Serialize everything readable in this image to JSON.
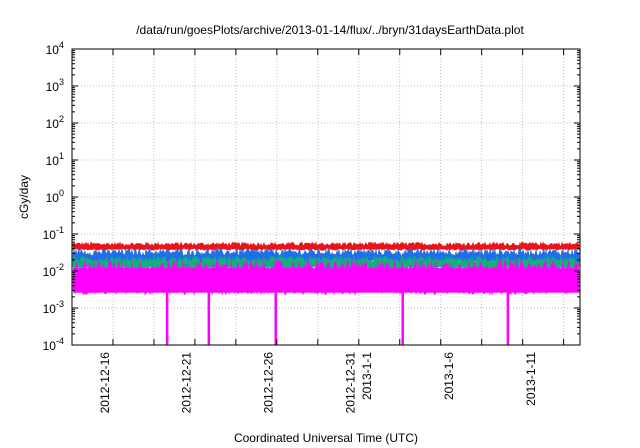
{
  "chart_data": {
    "type": "line",
    "title": "/data/run/goesPlots/archive/2013-01-14/flux/../bryn/31daysEarthData.plot",
    "xlabel": "Coordinated Universal Time (UTC)",
    "ylabel": "cGy/day",
    "yscale": "log",
    "ylim": [
      0.0001,
      10000
    ],
    "xlim": [
      "2012-12-14",
      "2013-01-14"
    ],
    "grid": true,
    "x_ticks": [
      {
        "date": "2012-12-16",
        "label": "2012-12-16"
      },
      {
        "date": "2012-12-21",
        "label": "2012-12-21"
      },
      {
        "date": "2012-12-26",
        "label": "2012-12-26"
      },
      {
        "date": "2012-12-31",
        "label": "2012-12-31"
      },
      {
        "date": "2013-01-01",
        "label": "2013-1-1"
      },
      {
        "date": "2013-01-06",
        "label": "2013-1-6"
      },
      {
        "date": "2013-01-11",
        "label": "2013-1-11"
      }
    ],
    "y_ticks": [
      {
        "value": 0.0001,
        "base": "10",
        "exp": "-4"
      },
      {
        "value": 0.001,
        "base": "10",
        "exp": "-3"
      },
      {
        "value": 0.01,
        "base": "10",
        "exp": "-2"
      },
      {
        "value": 0.1,
        "base": "10",
        "exp": "-1"
      },
      {
        "value": 1,
        "base": "10",
        "exp": "0"
      },
      {
        "value": 10,
        "base": "10",
        "exp": "1"
      },
      {
        "value": 100,
        "base": "10",
        "exp": "2"
      },
      {
        "value": 1000,
        "base": "10",
        "exp": "3"
      },
      {
        "value": 10000,
        "base": "10",
        "exp": "4"
      }
    ],
    "series": [
      {
        "color": "#e8141a",
        "typical_range": [
          0.035,
          0.06
        ]
      },
      {
        "color": "#1e6fe8",
        "typical_range": [
          0.015,
          0.04
        ]
      },
      {
        "color": "#12b07a",
        "typical_range": [
          0.01,
          0.025
        ]
      },
      {
        "color": "#ff00ff",
        "typical_range": [
          0.002,
          0.02
        ]
      }
    ],
    "dropouts": [
      {
        "series": 3,
        "date": "2012-12-19T19:00",
        "value": 0.0001
      },
      {
        "series": 3,
        "date": "2012-12-22T08:00",
        "value": 0.0001
      },
      {
        "series": 3,
        "date": "2012-12-26T10:00",
        "value": 0.0001
      },
      {
        "series": 3,
        "date": "2013-01-03T04:00",
        "value": 0.0001
      },
      {
        "series": 3,
        "date": "2013-01-09T14:00",
        "value": 0.0001
      }
    ]
  }
}
